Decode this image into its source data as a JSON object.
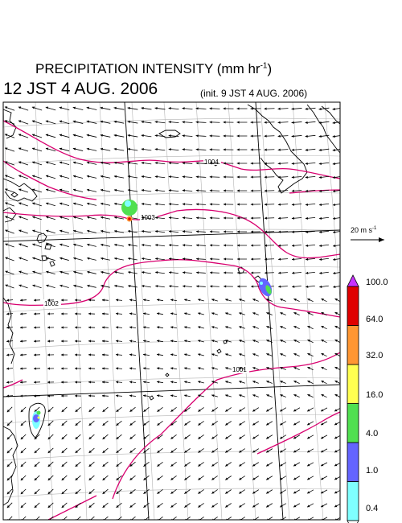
{
  "header": {
    "title_main": "PRECIPITATION INTENSITY (mm hr",
    "title_sup": "-1",
    "title_close": ")",
    "datetime": "12 JST 4 AUG. 2006",
    "init": "(init. 9 JST 4 AUG. 2006)"
  },
  "wind_reference": {
    "value_text": "20 m s",
    "unit_sup": "-1"
  },
  "isobars": [
    {
      "label": "1004"
    },
    {
      "label": "1003"
    },
    {
      "label": "1002"
    },
    {
      "label": "1001"
    }
  ],
  "colorbar": {
    "title": "Precipitation intensity (mm hr-1)",
    "levels": [
      "0.4",
      "1.0",
      "4.0",
      "16.0",
      "32.0",
      "64.0",
      "100.0"
    ],
    "colors": [
      "#7fffff",
      "#6464ff",
      "#50e050",
      "#ffff50",
      "#ff9632",
      "#e00000"
    ],
    "over_color": "#c832ff",
    "under_color": "#ffffff"
  },
  "colors": {
    "isobar": "#d8006f",
    "coast": "#000000",
    "grid": "#b4b4b4"
  }
}
